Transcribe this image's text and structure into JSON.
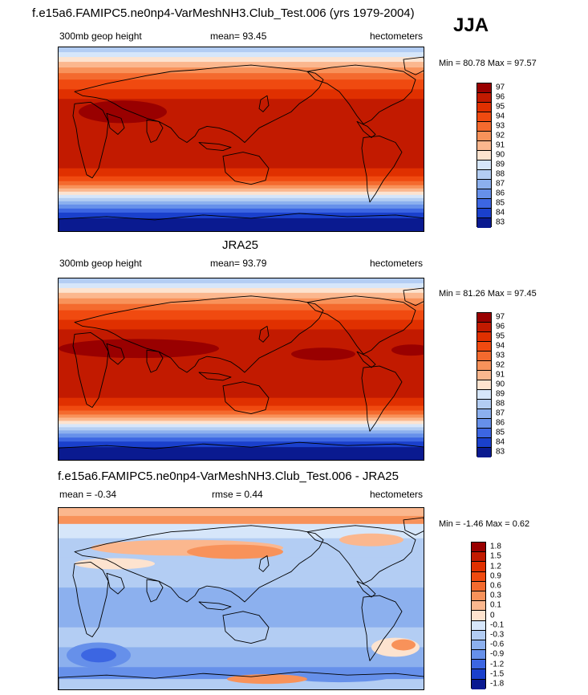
{
  "season": "JJA",
  "panels": [
    {
      "title": "f.e15a6.FAMIPC5.ne0np4-VarMeshNH3.Club_Test.006 (yrs 1979-2004)",
      "left": "300mb geop height",
      "center": "mean=  93.45",
      "right": "hectometers",
      "minmax": "Min =  80.78 Max =  97.57",
      "levels": [
        "97",
        "96",
        "95",
        "94",
        "93",
        "92",
        "91",
        "90",
        "89",
        "88",
        "87",
        "86",
        "85",
        "84",
        "83"
      ],
      "colors": [
        "#990000",
        "#c21a00",
        "#e03000",
        "#f04a10",
        "#f46a2e",
        "#f8925a",
        "#fbb78e",
        "#fde3cf",
        "#d6e6fa",
        "#b3cdf3",
        "#8cb0ee",
        "#6690ea",
        "#3c66e2",
        "#1a40cc",
        "#0a1a90"
      ]
    },
    {
      "title": "JRA25",
      "left": "300mb geop height",
      "center": "mean=  93.79",
      "right": "hectometers",
      "minmax": "Min =  81.26 Max =  97.45",
      "levels": [
        "97",
        "96",
        "95",
        "94",
        "93",
        "92",
        "91",
        "90",
        "89",
        "88",
        "87",
        "86",
        "85",
        "84",
        "83"
      ],
      "colors": [
        "#990000",
        "#c21a00",
        "#e03000",
        "#f04a10",
        "#f46a2e",
        "#f8925a",
        "#fbb78e",
        "#fde3cf",
        "#d6e6fa",
        "#b3cdf3",
        "#8cb0ee",
        "#6690ea",
        "#3c66e2",
        "#1a40cc",
        "#0a1a90"
      ]
    },
    {
      "title": "f.e15a6.FAMIPC5.ne0np4-VarMeshNH3.Club_Test.006 - JRA25",
      "left": "mean =  -0.34",
      "center": "rmse =   0.44",
      "right": "hectometers",
      "minmax": "Min =  -1.46 Max =   0.62",
      "levels": [
        "1.8",
        "1.5",
        "1.2",
        "0.9",
        "0.6",
        "0.3",
        "0.1",
        "0",
        "-0.1",
        "-0.3",
        "-0.6",
        "-0.9",
        "-1.2",
        "-1.5",
        "-1.8"
      ],
      "colors": [
        "#990000",
        "#c21a00",
        "#e03000",
        "#f04a10",
        "#f46a2e",
        "#f8925a",
        "#fbb78e",
        "#fde3cf",
        "#d6e6fa",
        "#b3cdf3",
        "#8cb0ee",
        "#6690ea",
        "#3c66e2",
        "#1a40cc",
        "#0a1a90"
      ]
    }
  ],
  "chart_data": {
    "type": "heatmap",
    "title": "300mb geop height (JJA)",
    "units": "hectometers",
    "model_field": {
      "mean": 93.45,
      "min": 80.78,
      "max": 97.57,
      "levels": [
        83,
        84,
        85,
        86,
        87,
        88,
        89,
        90,
        91,
        92,
        93,
        94,
        95,
        96,
        97
      ]
    },
    "obs_field": {
      "name": "JRA25",
      "mean": 93.79,
      "min": 81.26,
      "max": 97.45,
      "levels": [
        83,
        84,
        85,
        86,
        87,
        88,
        89,
        90,
        91,
        92,
        93,
        94,
        95,
        96,
        97
      ]
    },
    "difference": {
      "mean": -0.34,
      "rmse": 0.44,
      "min": -1.46,
      "max": 0.62,
      "levels": [
        -1.8,
        -1.5,
        -1.2,
        -0.9,
        -0.6,
        -0.3,
        -0.1,
        0,
        0.1,
        0.3,
        0.6,
        0.9,
        1.2,
        1.5,
        1.8
      ]
    }
  }
}
